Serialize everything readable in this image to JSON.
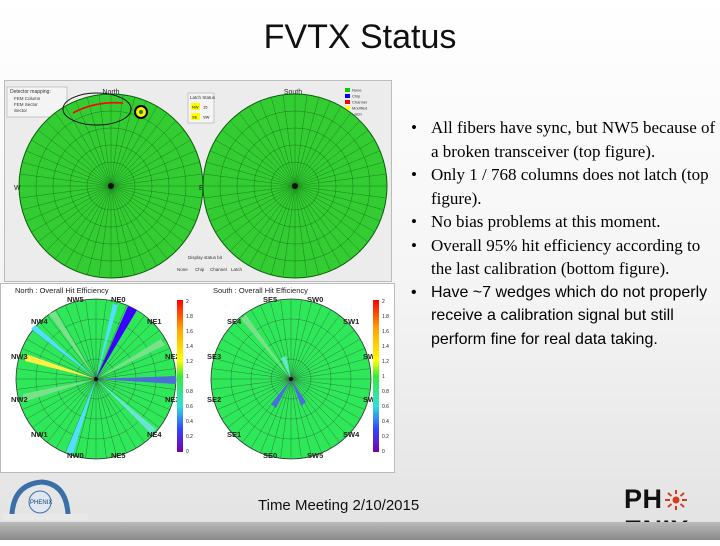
{
  "slide": {
    "title": "FVTX Status",
    "footer": "Time Meeting 2/10/2015"
  },
  "bullets": [
    "All fibers have sync, but NW5 because of a broken transceiver (top figure).",
    "Only 1 / 768 columns does not latch (top figure).",
    "No bias problems at this moment.",
    "Overall 95% hit efficiency according to the last calibration (bottom figure).",
    "Have ~7 wedges which do not properly receive a calibration signal but still perform fine for real data taking."
  ],
  "top_figure": {
    "north_label": "North",
    "south_label": "South",
    "view_mapping_title": "Detector mapping:",
    "view_mapping_options": [
      "FEM Column",
      "FEM Sector",
      "Sector"
    ],
    "latch_status_title": "Latch Status",
    "latch_values": [
      "NW",
      "15",
      "SE",
      "SW"
    ],
    "legend": [
      "None",
      "Chip",
      "Channel",
      "Modified",
      "Latch"
    ],
    "display_title": "Display status bit",
    "display_options": [
      "None",
      "Chip",
      "Channel",
      "Latch"
    ],
    "west_label": "W",
    "east_label": "E",
    "colors": {
      "green": "#33cc33",
      "dark_green": "#1a8a1a",
      "legend": [
        "#00cc00",
        "#0000ff",
        "#ff0000",
        "#ffff00",
        "#ff8800"
      ]
    }
  },
  "bottom_figure": {
    "north_title": "North : Overall Hit Efficiency",
    "south_title": "South : Overall Hit Efficiency",
    "north_wedge_labels": [
      "NW5",
      "NE0",
      "NW4",
      "NE1",
      "NW3",
      "NE2",
      "NW2",
      "NE3",
      "NW1",
      "NE4",
      "NW0",
      "NE5"
    ],
    "south_wedge_labels": [
      "SE5",
      "SW0",
      "SE4",
      "SW1",
      "SE3",
      "SW2",
      "SE2",
      "SW3",
      "SE1",
      "SW4",
      "SE0",
      "SW5"
    ],
    "colorbar_ticks": [
      "2",
      "1.8",
      "1.6",
      "1.4",
      "1.2",
      "1",
      "0.8",
      "0.6",
      "0.4",
      "0.2",
      "0"
    ]
  },
  "logos": {
    "left_caption": "PHENIX",
    "right_text_a": "PH",
    "right_text_b": "ENIX"
  }
}
